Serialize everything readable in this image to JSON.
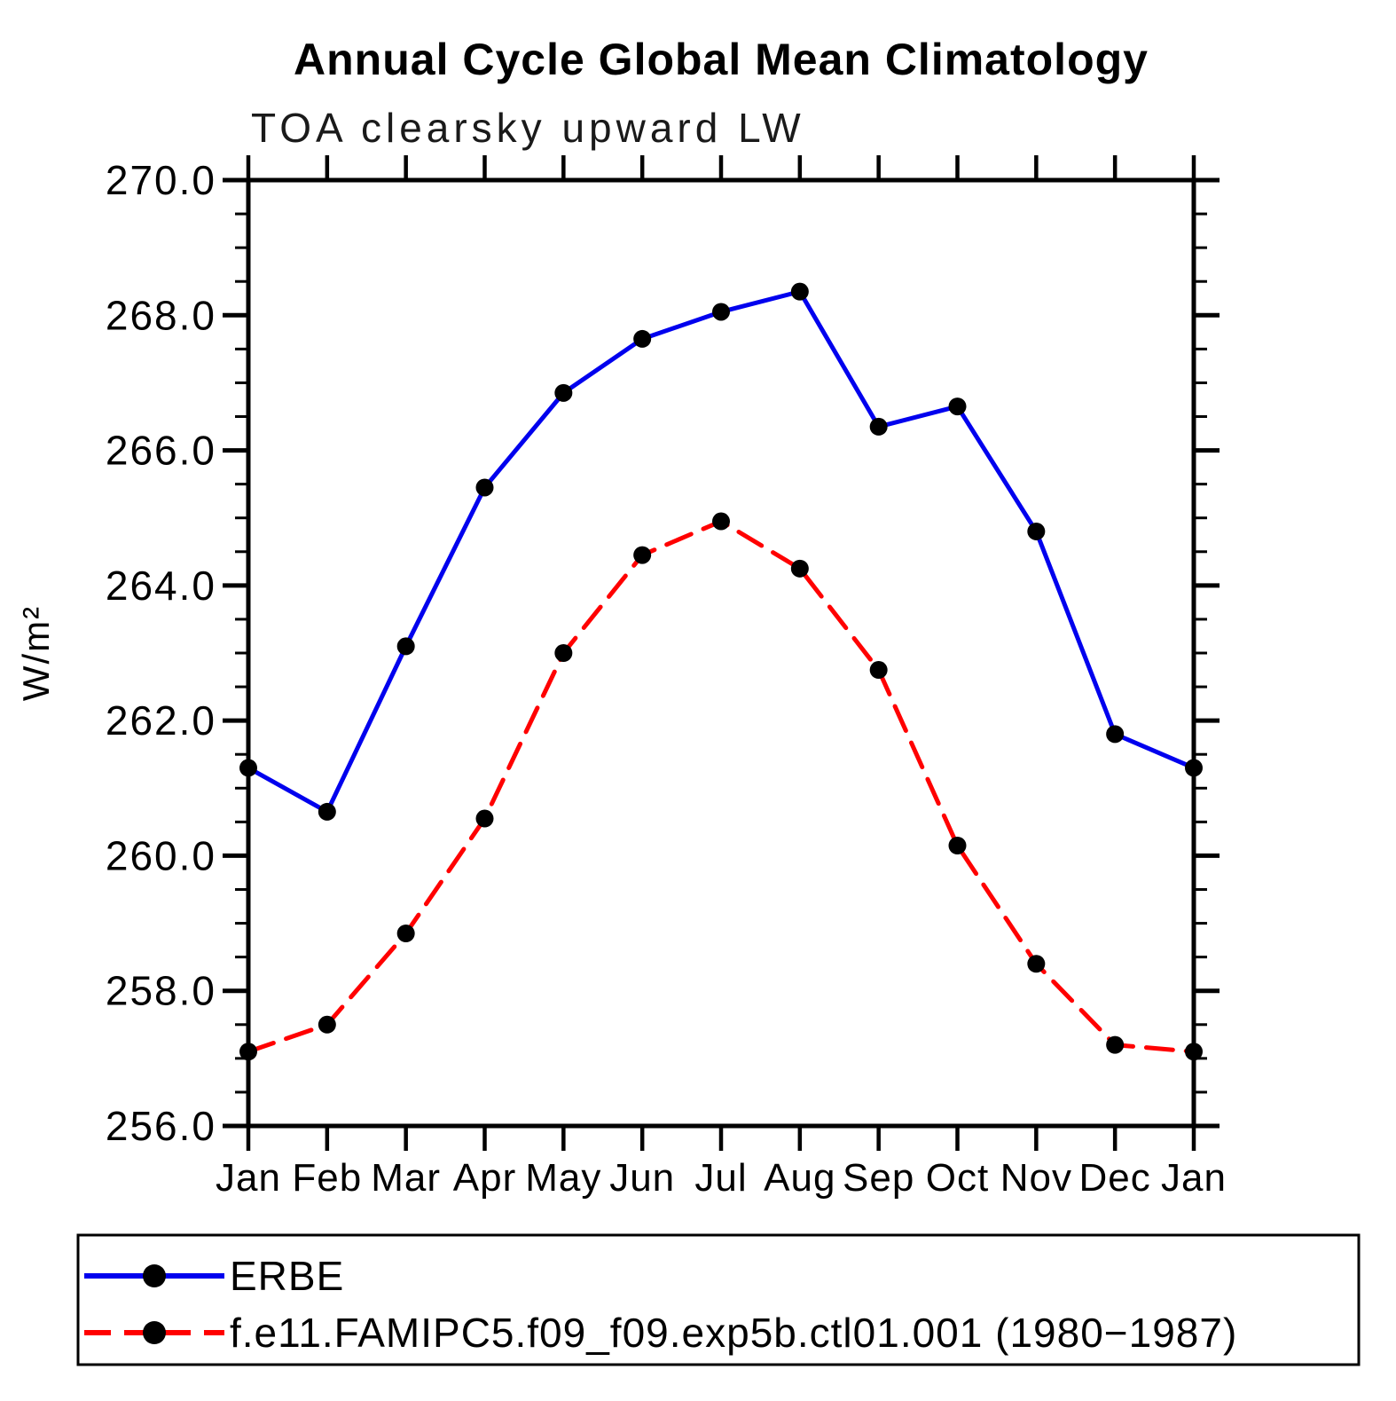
{
  "chart_data": {
    "type": "line",
    "title": "Annual Cycle Global Mean Climatology",
    "subtitle": "TOA clearsky upward LW",
    "ylabel": "W/m²",
    "xlabel": "",
    "categories": [
      "Jan",
      "Feb",
      "Mar",
      "Apr",
      "May",
      "Jun",
      "Jul",
      "Aug",
      "Sep",
      "Oct",
      "Nov",
      "Dec",
      "Jan"
    ],
    "ylim": [
      256.0,
      270.0
    ],
    "y_major_step": 2.0,
    "y_minor_step": 0.5,
    "y_tick_labels": [
      "256.0",
      "258.0",
      "260.0",
      "262.0",
      "264.0",
      "266.0",
      "268.0",
      "270.0"
    ],
    "grid": "off",
    "legend_position": "bottom-box",
    "marker": "filled-circle",
    "marker_color": "#000000",
    "frame_color": "#000000",
    "series": [
      {
        "name": "ERBE",
        "color": "#0000ee",
        "line_style": "solid",
        "values": [
          261.3,
          260.65,
          263.1,
          265.45,
          266.85,
          267.65,
          268.05,
          268.35,
          266.35,
          266.65,
          264.8,
          261.8,
          261.3
        ]
      },
      {
        "name": "f.e11.FAMIPC5.f09_f09.exp5b.ctl01.001 (1980−1987)",
        "color": "#ff0000",
        "line_style": "dashed",
        "values": [
          257.1,
          257.5,
          258.85,
          260.55,
          263.0,
          264.45,
          264.95,
          264.25,
          262.75,
          260.15,
          258.4,
          257.2,
          257.1
        ]
      }
    ]
  }
}
